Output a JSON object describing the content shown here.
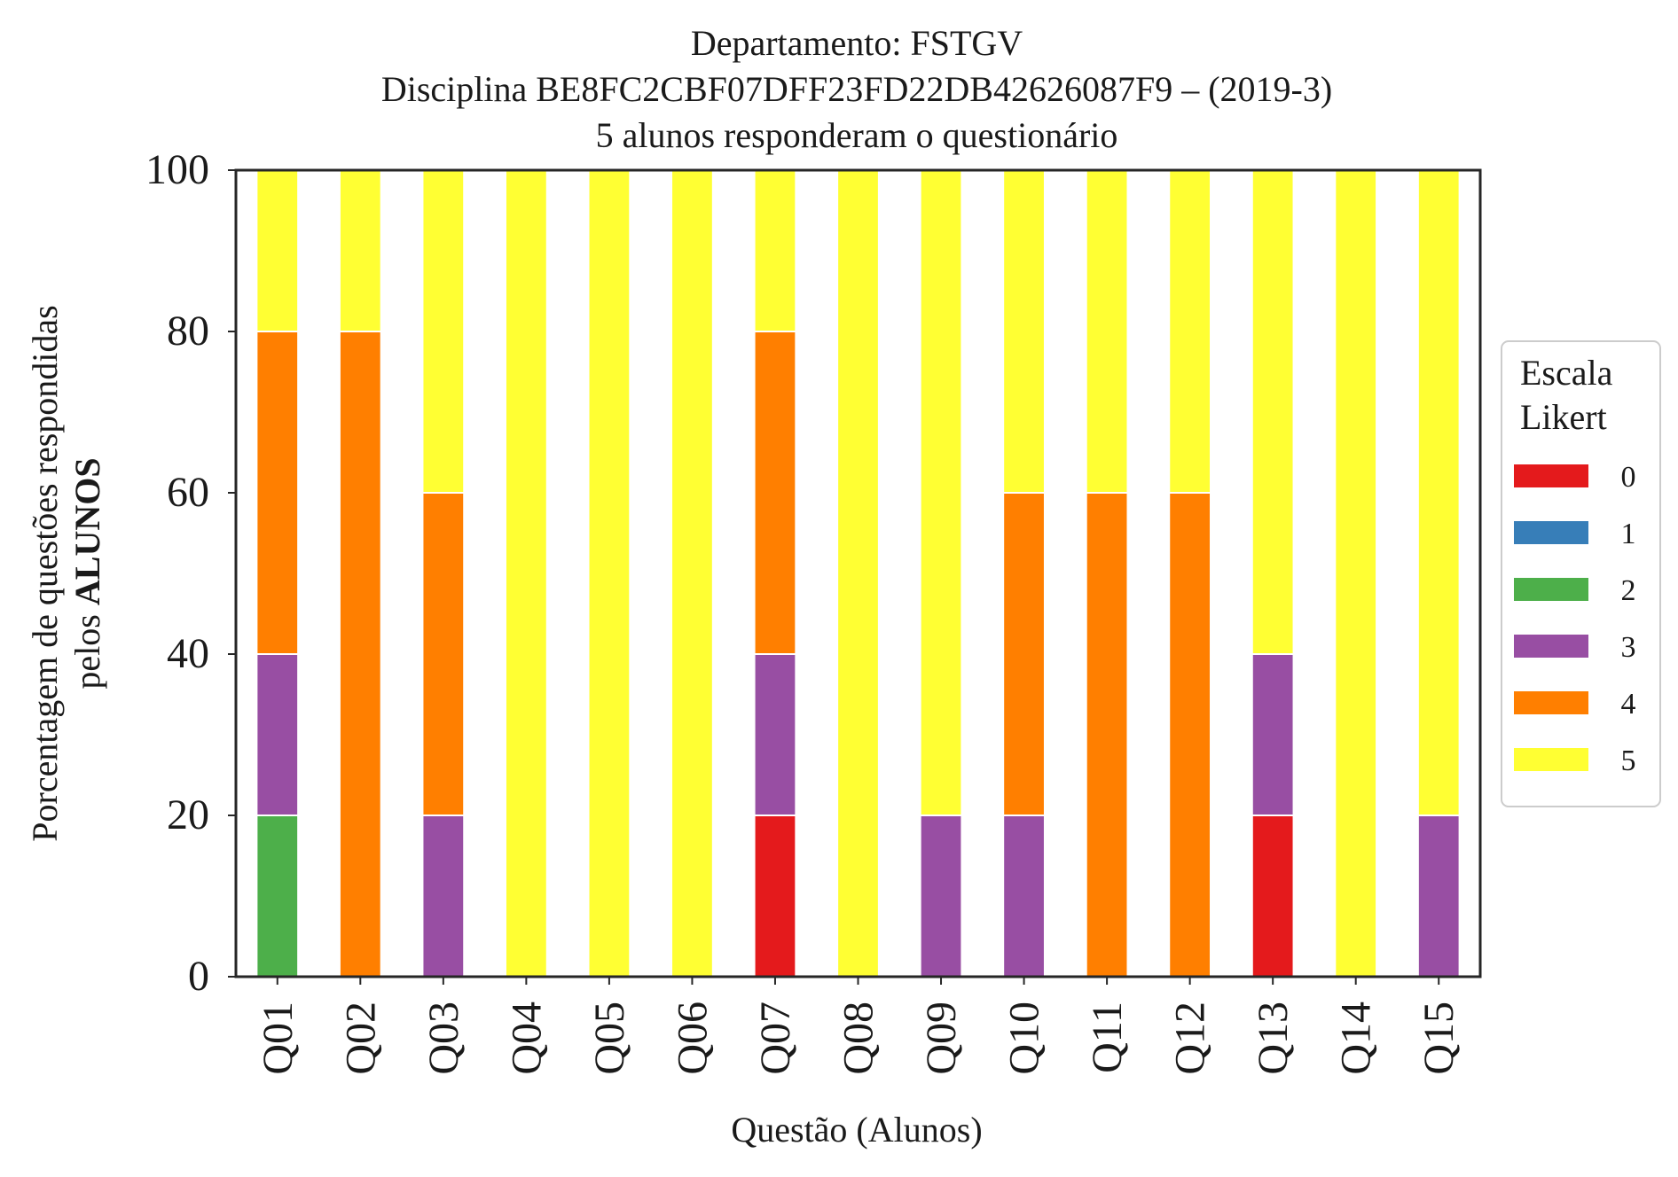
{
  "chart_data": {
    "type": "bar",
    "stacked": true,
    "title_lines": [
      "Departamento: FSTGV",
      "Disciplina BE8FC2CBF07DFF23FD22DB42626087F9 – (2019-3)",
      "5 alunos responderam o questionário"
    ],
    "xlabel": "Questão (Alunos)",
    "ylabel_line1": "Porcentagem de questões respondidas",
    "ylabel_line2_prefix": "pelos ",
    "ylabel_line2_bold": "ALUNOS",
    "ylim": [
      0,
      100
    ],
    "yticks": [
      "0",
      "20",
      "40",
      "60",
      "80",
      "100"
    ],
    "grid": false,
    "legend_title_line1": "Escala",
    "legend_title_line2": "Likert",
    "legend_position": "right",
    "categories": [
      "Q01",
      "Q02",
      "Q03",
      "Q04",
      "Q05",
      "Q06",
      "Q07",
      "Q08",
      "Q09",
      "Q10",
      "Q11",
      "Q12",
      "Q13",
      "Q14",
      "Q15"
    ],
    "series": [
      {
        "name": "0",
        "color": "#e41a1c",
        "values": [
          0,
          0,
          0,
          0,
          0,
          0,
          20,
          0,
          0,
          0,
          0,
          0,
          20,
          0,
          0
        ]
      },
      {
        "name": "1",
        "color": "#377eb8",
        "values": [
          0,
          0,
          0,
          0,
          0,
          0,
          0,
          0,
          0,
          0,
          0,
          0,
          0,
          0,
          0
        ]
      },
      {
        "name": "2",
        "color": "#4daf4a",
        "values": [
          20,
          0,
          0,
          0,
          0,
          0,
          0,
          0,
          0,
          0,
          0,
          0,
          0,
          0,
          0
        ]
      },
      {
        "name": "3",
        "color": "#984ea3",
        "values": [
          20,
          0,
          20,
          0,
          0,
          0,
          20,
          0,
          20,
          20,
          0,
          0,
          20,
          0,
          20
        ]
      },
      {
        "name": "4",
        "color": "#ff7f00",
        "values": [
          40,
          80,
          40,
          0,
          0,
          0,
          40,
          0,
          0,
          40,
          60,
          60,
          0,
          0,
          0
        ]
      },
      {
        "name": "5",
        "color": "#ffff33",
        "values": [
          20,
          20,
          40,
          100,
          100,
          100,
          20,
          100,
          80,
          40,
          40,
          40,
          60,
          100,
          80
        ]
      }
    ]
  }
}
